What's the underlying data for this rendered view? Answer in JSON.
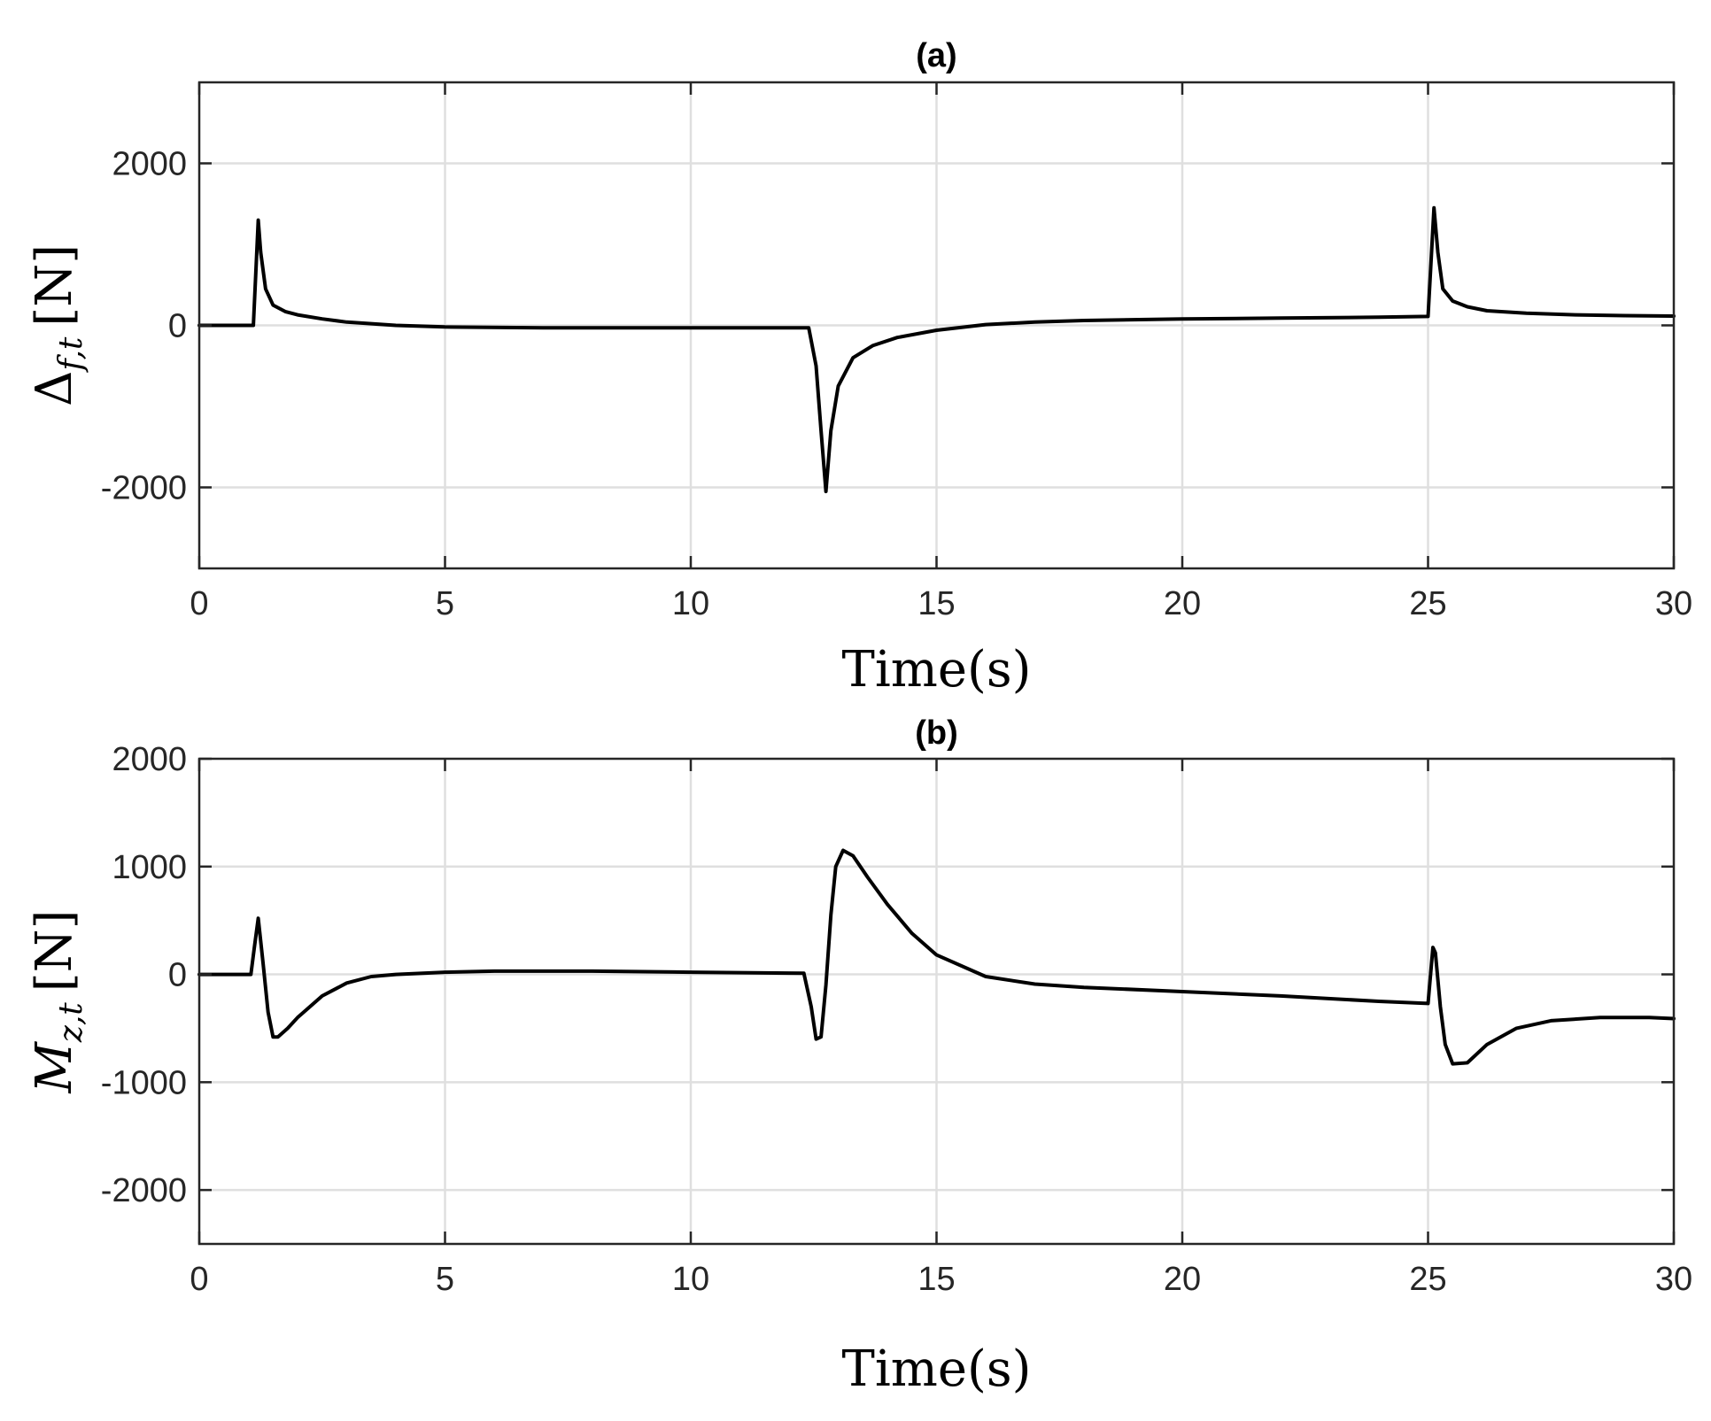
{
  "chart_data": [
    {
      "type": "line",
      "title": "(a)",
      "xlabel": "Time(s)",
      "ylabel": {
        "main": "Δ",
        "sub": "f,t",
        "unit": "[N]"
      },
      "xlim": [
        0,
        30
      ],
      "ylim": [
        -3000,
        3000
      ],
      "xticks": [
        0,
        5,
        10,
        15,
        20,
        25,
        30
      ],
      "yticks": [
        -2000,
        0,
        2000
      ],
      "grid": true,
      "series": [
        {
          "name": "delta_f_t",
          "x": [
            0,
            1.1,
            1.2,
            1.25,
            1.35,
            1.5,
            1.75,
            2.0,
            2.5,
            3.0,
            4.0,
            5.0,
            7.0,
            9.0,
            11.0,
            12.4,
            12.55,
            12.65,
            12.75,
            12.85,
            13.0,
            13.3,
            13.7,
            14.2,
            15.0,
            16.0,
            17.0,
            18.0,
            20.0,
            22.0,
            24.0,
            25.0,
            25.12,
            25.2,
            25.3,
            25.5,
            25.8,
            26.2,
            27.0,
            28.0,
            29.0,
            30.0
          ],
          "y": [
            0,
            0,
            1300,
            900,
            450,
            250,
            170,
            130,
            80,
            40,
            0,
            -20,
            -30,
            -30,
            -30,
            -30,
            -500,
            -1300,
            -2050,
            -1300,
            -750,
            -400,
            -250,
            -150,
            -60,
            10,
            40,
            60,
            80,
            90,
            100,
            110,
            1450,
            900,
            450,
            300,
            230,
            180,
            150,
            130,
            120,
            115
          ]
        }
      ]
    },
    {
      "type": "line",
      "title": "(b)",
      "xlabel": "Time(s)",
      "ylabel": {
        "main": "M",
        "sub": "z,t",
        "unit": "[N]"
      },
      "xlim": [
        0,
        30
      ],
      "ylim": [
        -2500,
        2000
      ],
      "xticks": [
        0,
        5,
        10,
        15,
        20,
        25,
        30
      ],
      "yticks": [
        -2000,
        -1000,
        0,
        1000,
        2000
      ],
      "grid": true,
      "series": [
        {
          "name": "M_z_t",
          "x": [
            0,
            1.05,
            1.12,
            1.2,
            1.3,
            1.4,
            1.5,
            1.6,
            1.8,
            2.0,
            2.5,
            3.0,
            3.5,
            4.0,
            5.0,
            6.0,
            8.0,
            10.0,
            12.3,
            12.45,
            12.55,
            12.65,
            12.75,
            12.85,
            12.95,
            13.1,
            13.3,
            13.6,
            14.0,
            14.5,
            15.0,
            16.0,
            17.0,
            18.0,
            20.0,
            22.0,
            24.0,
            25.0,
            25.1,
            25.15,
            25.25,
            25.35,
            25.5,
            25.8,
            26.2,
            26.8,
            27.5,
            28.5,
            29.5,
            30.0
          ],
          "y": [
            0,
            0,
            250,
            520,
            100,
            -350,
            -580,
            -580,
            -500,
            -400,
            -200,
            -80,
            -20,
            0,
            20,
            30,
            30,
            20,
            10,
            -300,
            -600,
            -580,
            -100,
            550,
            1000,
            1150,
            1100,
            900,
            650,
            380,
            180,
            -20,
            -90,
            -120,
            -160,
            -200,
            -250,
            -270,
            250,
            200,
            -300,
            -650,
            -830,
            -820,
            -650,
            -500,
            -430,
            -400,
            -400,
            -410
          ]
        }
      ]
    }
  ]
}
